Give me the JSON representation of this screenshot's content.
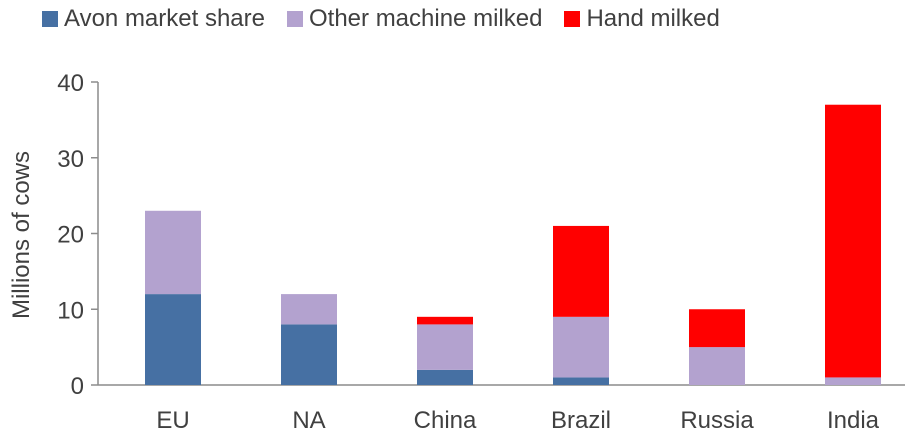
{
  "chart_data": {
    "type": "bar",
    "stacked": true,
    "categories": [
      "EU",
      "NA",
      "China",
      "Brazil",
      "Russia",
      "India"
    ],
    "series": [
      {
        "name": "Avon market share",
        "color": "#4670A3",
        "values": [
          12,
          8,
          2,
          1,
          0,
          0
        ]
      },
      {
        "name": "Other machine milked",
        "color": "#B3A2CF",
        "values": [
          11,
          4,
          6,
          8,
          5,
          1
        ]
      },
      {
        "name": "Hand milked",
        "color": "#FF0000",
        "values": [
          0,
          0,
          1,
          12,
          5,
          36
        ]
      }
    ],
    "ylabel": "Millions of cows",
    "ylim": [
      0,
      40
    ],
    "yticks": [
      0,
      10,
      20,
      30,
      40
    ],
    "legend_position": "top",
    "grid": false
  }
}
